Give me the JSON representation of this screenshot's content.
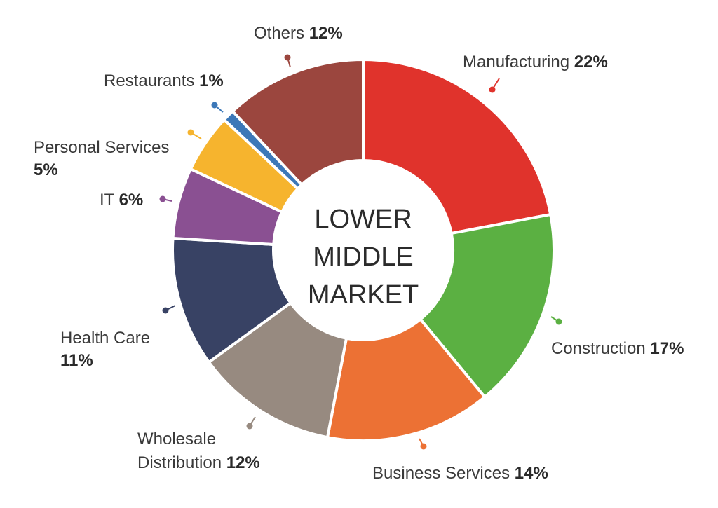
{
  "chart_data": {
    "type": "pie",
    "variant": "donut",
    "center_label": [
      "LOWER",
      "MIDDLE",
      "MARKET"
    ],
    "slices": [
      {
        "name": "Manufacturing",
        "value": 22,
        "value_label": "22%",
        "color": "#e0332c"
      },
      {
        "name": "Construction",
        "value": 17,
        "value_label": "17%",
        "color": "#5bb042"
      },
      {
        "name": "Business Services",
        "value": 14,
        "value_label": "14%",
        "color": "#ec7134"
      },
      {
        "name": "Wholesale Distribution",
        "value": 12,
        "value_label": "12%",
        "color": "#978a80"
      },
      {
        "name": "Health Care",
        "value": 11,
        "value_label": "11%",
        "color": "#384264"
      },
      {
        "name": "IT",
        "value": 6,
        "value_label": "6%",
        "color": "#8a5092"
      },
      {
        "name": "Personal Services",
        "value": 5,
        "value_label": "5%",
        "color": "#f6b42e"
      },
      {
        "name": "Restaurants",
        "value": 1,
        "value_label": "1%",
        "color": "#3c78b8"
      },
      {
        "name": "Others",
        "value": 12,
        "value_label": "12%",
        "color": "#9b463e"
      }
    ]
  }
}
